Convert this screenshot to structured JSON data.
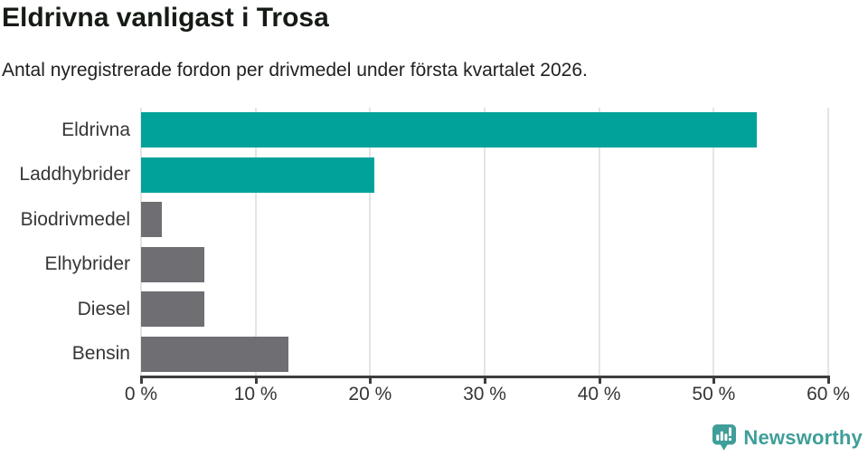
{
  "header": {
    "title": "Eldrivna vanligast i Trosa",
    "subtitle": "Antal nyregistrerade fordon per drivmedel under första kvartalet 2026."
  },
  "chart_data": {
    "type": "bar",
    "orientation": "horizontal",
    "title": "Eldrivna vanligast i Trosa",
    "subtitle": "Antal nyregistrerade fordon per drivmedel under första kvartalet 2026.",
    "categories": [
      "Eldrivna",
      "Laddhybrider",
      "Biodrivmedel",
      "Elhybrider",
      "Diesel",
      "Bensin"
    ],
    "values": [
      53.8,
      20.4,
      1.8,
      5.5,
      5.5,
      12.9
    ],
    "unit": "%",
    "xlim": [
      0,
      60
    ],
    "x_ticks": [
      0,
      10,
      20,
      30,
      40,
      50,
      60
    ],
    "x_tick_labels": [
      "0 %",
      "10 %",
      "20 %",
      "30 %",
      "40 %",
      "50 %",
      "60 %"
    ],
    "grid": true,
    "legend": false,
    "highlighted": [
      true,
      true,
      false,
      false,
      false,
      false
    ],
    "highlight_color": "#00a29a",
    "base_color": "#6e6e73"
  },
  "footer": {
    "brand": "Newsworthy",
    "brand_color": "#3f9e99",
    "logo_icon": "bar-chart-speech-bubble-icon"
  },
  "colors": {
    "background": "#ffffff",
    "gridline": "#e4e4e4",
    "axis": "#3e3e3e",
    "tick_text": "#363636",
    "title_text": "#161b16"
  }
}
